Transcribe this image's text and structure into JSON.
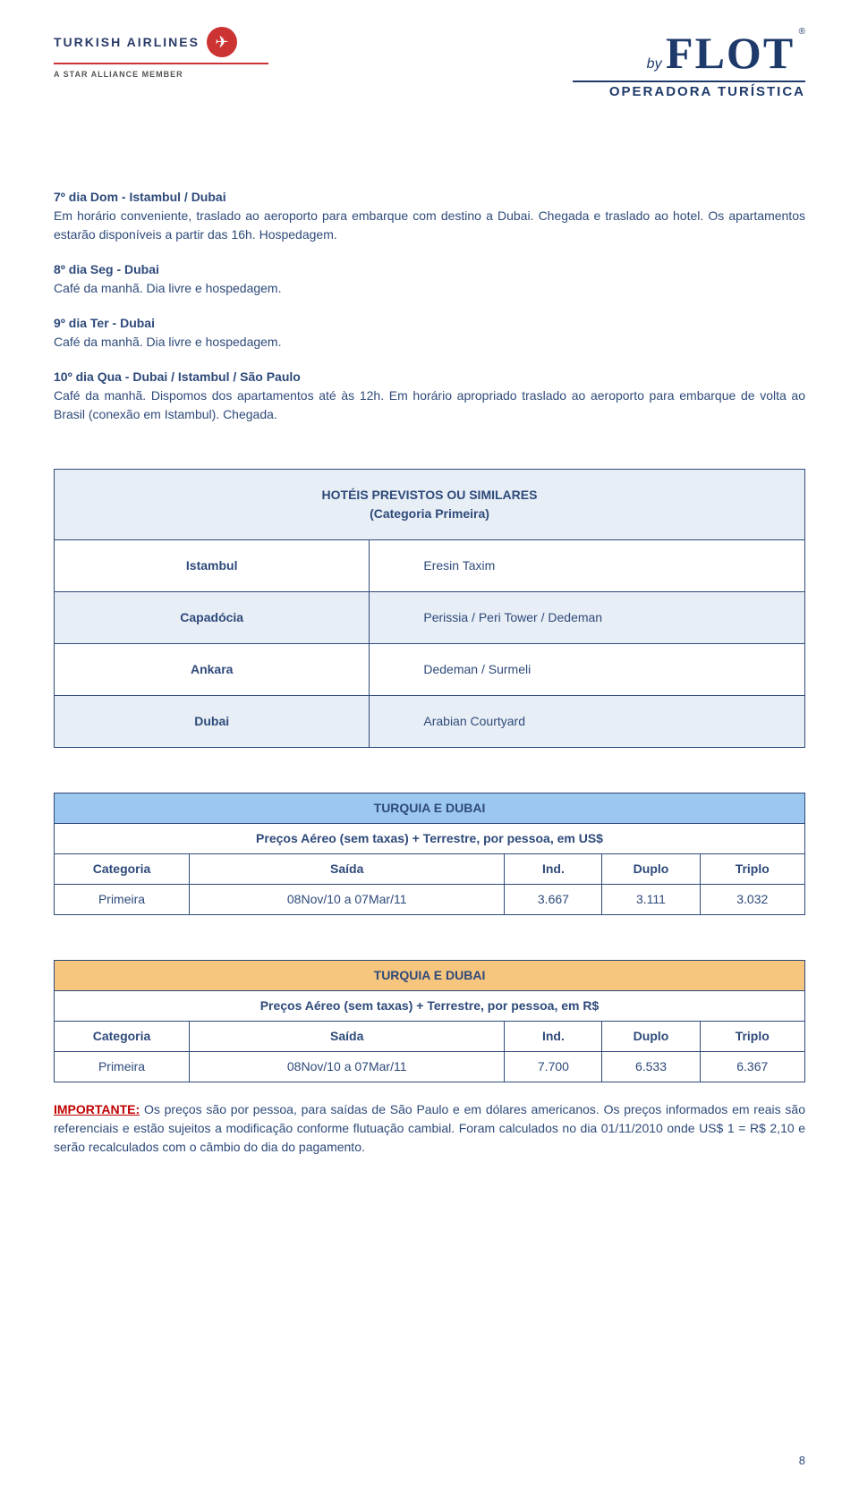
{
  "header": {
    "ta_name": "TURKISH AIRLINES",
    "ta_member": "A STAR ALLIANCE MEMBER",
    "flot_by": "by",
    "flot_main": "FLOT",
    "flot_reg": "®",
    "flot_sub": "OPERADORA TURÍSTICA"
  },
  "days": [
    {
      "title": "7º dia Dom - Istambul / Dubai",
      "text": "Em horário conveniente, traslado ao aeroporto para embarque com destino a Dubai. Chegada e traslado ao hotel. Os apartamentos estarão disponíveis a partir das 16h. Hospedagem."
    },
    {
      "title": "8º dia Seg - Dubai",
      "text": "Café da manhã. Dia livre e hospedagem."
    },
    {
      "title": "9º dia Ter - Dubai",
      "text": "Café da manhã. Dia livre e hospedagem."
    },
    {
      "title": "10º dia Qua - Dubai / Istambul / São Paulo",
      "text": "Café da manhã. Dispomos dos apartamentos até às 12h. Em horário apropriado traslado ao aeroporto para embarque de volta ao Brasil (conexão em Istambul). Chegada."
    }
  ],
  "hotels": {
    "header1": "HOTÉIS PREVISTOS OU SIMILARES",
    "header2": "(Categoria Primeira)",
    "rows": [
      {
        "city": "Istambul",
        "hotel": "Eresin Taxim"
      },
      {
        "city": "Capadócia",
        "hotel": "Perissia / Peri Tower / Dedeman"
      },
      {
        "city": "Ankara",
        "hotel": "Dedeman / Surmeli"
      },
      {
        "city": "Dubai",
        "hotel": "Arabian Courtyard"
      }
    ]
  },
  "prices_usd": {
    "title": "TURQUIA E DUBAI",
    "subtitle": "Preços Aéreo (sem taxas) + Terrestre, por pessoa, em US$",
    "columns": [
      "Categoria",
      "Saída",
      "Ind.",
      "Duplo",
      "Triplo"
    ],
    "row": {
      "cat": "Primeira",
      "saida": "08Nov/10 a 07Mar/11",
      "ind": "3.667",
      "duplo": "3.111",
      "triplo": "3.032"
    }
  },
  "prices_brl": {
    "title": "TURQUIA E DUBAI",
    "subtitle": "Preços Aéreo (sem taxas) + Terrestre, por pessoa, em R$",
    "columns": [
      "Categoria",
      "Saída",
      "Ind.",
      "Duplo",
      "Triplo"
    ],
    "row": {
      "cat": "Primeira",
      "saida": "08Nov/10 a 07Mar/11",
      "ind": "7.700",
      "duplo": "6.533",
      "triplo": "6.367"
    }
  },
  "important": {
    "label": "IMPORTANTE:",
    "text": " Os preços são por pessoa, para saídas de São Paulo e em dólares americanos. Os preços informados em reais são referenciais e estão sujeitos a modificação conforme flutuação cambial. Foram calculados no dia 01/11/2010 onde US$ 1 = R$ 2,10 e serão recalculados com o câmbio do dia do pagamento."
  },
  "page_number": "8"
}
